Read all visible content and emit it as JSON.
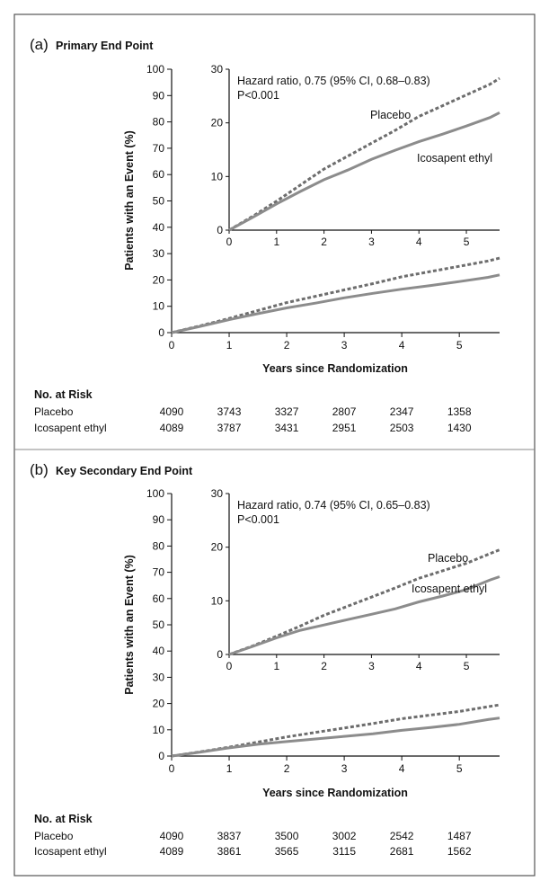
{
  "chart_data": [
    {
      "type": "line",
      "panel_letter": "(a)",
      "title": "Primary End Point",
      "xlabel": "Years since Randomization",
      "ylabel": "Patients with an Event (%)",
      "xlim": [
        0,
        5.7
      ],
      "ylim": [
        0,
        100
      ],
      "xticks": [
        "0",
        "1",
        "2",
        "3",
        "4",
        "5"
      ],
      "yticks": [
        "0",
        "10",
        "20",
        "30",
        "40",
        "50",
        "60",
        "70",
        "80",
        "90",
        "100"
      ],
      "series": [
        {
          "name": "Placebo",
          "style": "dashed",
          "x": [
            0,
            0.5,
            1,
            1.5,
            2,
            2.5,
            3,
            3.5,
            4,
            4.5,
            5,
            5.5,
            5.7
          ],
          "y": [
            0,
            2.6,
            5.4,
            8.4,
            11.4,
            13.8,
            16.2,
            18.6,
            21.2,
            23.2,
            25.2,
            27.2,
            28.3
          ]
        },
        {
          "name": "Icosapent ethyl",
          "style": "solid",
          "x": [
            0,
            0.5,
            1,
            1.5,
            2,
            2.5,
            3,
            3.5,
            4,
            4.5,
            5,
            5.5,
            5.7
          ],
          "y": [
            0,
            2.4,
            4.9,
            7.2,
            9.4,
            11.2,
            13.2,
            14.9,
            16.5,
            17.9,
            19.4,
            21.0,
            21.9
          ]
        }
      ],
      "inset": {
        "xlim": [
          0,
          5.7
        ],
        "ylim": [
          0,
          30
        ],
        "xticks": [
          "0",
          "1",
          "2",
          "3",
          "4",
          "5"
        ],
        "yticks": [
          "0",
          "10",
          "20",
          "30"
        ],
        "annotation_line1": "Hazard ratio, 0.75 (95% CI, 0.68–0.83)",
        "annotation_line2": "P<0.001",
        "placebo_label": "Placebo",
        "ice_label": "Icosapent ethyl"
      },
      "risk_table": {
        "header": "No. at Risk",
        "rows": [
          {
            "label": "Placebo",
            "values": [
              "4090",
              "3743",
              "3327",
              "2807",
              "2347",
              "1358"
            ]
          },
          {
            "label": "Icosapent ethyl",
            "values": [
              "4089",
              "3787",
              "3431",
              "2951",
              "2503",
              "1430"
            ]
          }
        ]
      }
    },
    {
      "type": "line",
      "panel_letter": "(b)",
      "title": "Key Secondary End Point",
      "xlabel": "Years since Randomization",
      "ylabel": "Patients with an Event (%)",
      "xlim": [
        0,
        5.7
      ],
      "ylim": [
        0,
        100
      ],
      "xticks": [
        "0",
        "1",
        "2",
        "3",
        "4",
        "5"
      ],
      "yticks": [
        "0",
        "10",
        "20",
        "30",
        "40",
        "50",
        "60",
        "70",
        "80",
        "90",
        "100"
      ],
      "series": [
        {
          "name": "Placebo",
          "style": "dashed",
          "x": [
            0,
            0.5,
            1,
            1.5,
            2,
            2.5,
            3,
            3.5,
            4,
            4.5,
            5,
            5.5,
            5.7
          ],
          "y": [
            0,
            1.6,
            3.4,
            5.3,
            7.3,
            9.0,
            10.7,
            12.4,
            14.2,
            15.6,
            17.0,
            18.8,
            19.5
          ]
        },
        {
          "name": "Icosapent ethyl",
          "style": "solid",
          "x": [
            0,
            0.5,
            1,
            1.5,
            2,
            2.5,
            3,
            3.5,
            4,
            4.5,
            5,
            5.5,
            5.7
          ],
          "y": [
            0,
            1.5,
            3.1,
            4.5,
            5.5,
            6.5,
            7.5,
            8.5,
            9.8,
            10.9,
            12.1,
            13.9,
            14.5
          ]
        }
      ],
      "inset": {
        "xlim": [
          0,
          5.7
        ],
        "ylim": [
          0,
          30
        ],
        "xticks": [
          "0",
          "1",
          "2",
          "3",
          "4",
          "5"
        ],
        "yticks": [
          "0",
          "10",
          "20",
          "30"
        ],
        "annotation_line1": "Hazard ratio, 0.74 (95% CI, 0.65–0.83)",
        "annotation_line2": "P<0.001",
        "placebo_label": "Placebo",
        "ice_label": "Icosapent ethyl"
      },
      "risk_table": {
        "header": "No. at Risk",
        "rows": [
          {
            "label": "Placebo",
            "values": [
              "4090",
              "3837",
              "3500",
              "3002",
              "2542",
              "1487"
            ]
          },
          {
            "label": "Icosapent ethyl",
            "values": [
              "4089",
              "3861",
              "3565",
              "3115",
              "2681",
              "1562"
            ]
          }
        ]
      }
    }
  ]
}
